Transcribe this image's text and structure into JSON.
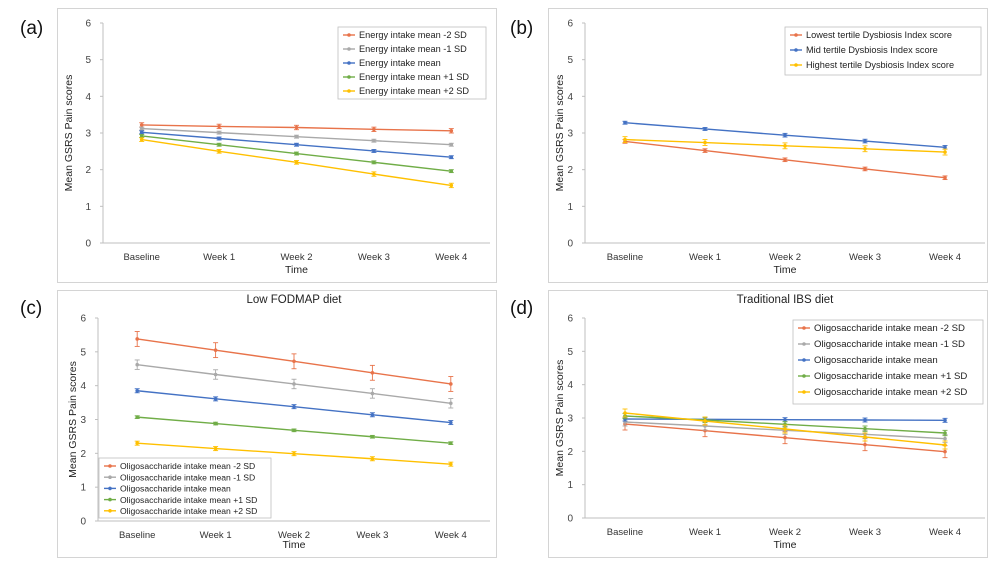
{
  "panels": [
    {
      "letter": "(a)",
      "chart_data": {
        "type": "line",
        "title": "",
        "xlabel": "Time",
        "ylabel": "Mean GSRS Pain scores",
        "categories": [
          "Baseline",
          "Week 1",
          "Week 2",
          "Week 3",
          "Week 4"
        ],
        "ylim": [
          0,
          6
        ],
        "yticks": [
          "0",
          "1",
          "2",
          "3",
          "4",
          "5",
          "6"
        ],
        "grid": false,
        "legend_placement": "top-right",
        "series": [
          {
            "name": "Energy intake mean -2 SD",
            "color": "#e8734a",
            "values": [
              3.22,
              3.18,
              3.15,
              3.1,
              3.06
            ],
            "errors": [
              0.06,
              0.06,
              0.06,
              0.06,
              0.06
            ]
          },
          {
            "name": "Energy intake mean -1 SD",
            "color": "#a9a9a9",
            "values": [
              3.12,
              3.01,
              2.9,
              2.79,
              2.68
            ],
            "errors": [
              0.04,
              0.04,
              0.04,
              0.04,
              0.04
            ]
          },
          {
            "name": "Energy intake mean",
            "color": "#4472c4",
            "values": [
              3.02,
              2.85,
              2.68,
              2.51,
              2.34
            ],
            "errors": [
              0.04,
              0.04,
              0.04,
              0.04,
              0.04
            ]
          },
          {
            "name": "Energy intake mean +1 SD",
            "color": "#70ad47",
            "values": [
              2.92,
              2.68,
              2.44,
              2.2,
              1.96
            ],
            "errors": [
              0.04,
              0.04,
              0.04,
              0.04,
              0.04
            ]
          },
          {
            "name": "Energy intake mean +2 SD",
            "color": "#ffc000",
            "values": [
              2.82,
              2.5,
              2.2,
              1.88,
              1.57
            ],
            "errors": [
              0.05,
              0.05,
              0.05,
              0.06,
              0.06
            ]
          }
        ]
      }
    },
    {
      "letter": "(b)",
      "chart_data": {
        "type": "line",
        "title": "",
        "xlabel": "Time",
        "ylabel": "Mean GSRS Pain scores",
        "categories": [
          "Baseline",
          "Week 1",
          "Week 2",
          "Week 3",
          "Week 4"
        ],
        "ylim": [
          0,
          6
        ],
        "yticks": [
          "0",
          "1",
          "2",
          "3",
          "4",
          "5",
          "6"
        ],
        "grid": false,
        "legend_placement": "top-right",
        "series": [
          {
            "name": "Lowest tertile Dysbiosis Index score",
            "color": "#e8734a",
            "values": [
              2.77,
              2.52,
              2.27,
              2.02,
              1.78
            ],
            "errors": [
              0.05,
              0.05,
              0.05,
              0.05,
              0.05
            ]
          },
          {
            "name": "Mid tertile Dysbiosis Index score",
            "color": "#4472c4",
            "values": [
              3.28,
              3.11,
              2.94,
              2.78,
              2.61
            ],
            "errors": [
              0.04,
              0.04,
              0.05,
              0.05,
              0.05
            ]
          },
          {
            "name": "Highest tertile Dysbiosis Index score",
            "color": "#ffc000",
            "values": [
              2.82,
              2.74,
              2.65,
              2.57,
              2.48
            ],
            "errors": [
              0.08,
              0.08,
              0.08,
              0.08,
              0.08
            ]
          }
        ]
      }
    },
    {
      "letter": "(c)",
      "chart_data": {
        "type": "line",
        "title": "Low FODMAP diet",
        "xlabel": "Time",
        "ylabel": "Mean GSRS Pain scores",
        "categories": [
          "Baseline",
          "Week 1",
          "Week 2",
          "Week 3",
          "Week 4"
        ],
        "ylim": [
          0,
          6
        ],
        "yticks": [
          "0",
          "1",
          "2",
          "3",
          "4",
          "5",
          "6"
        ],
        "grid": false,
        "legend_placement": "bottom-left",
        "series": [
          {
            "name": "Oligosaccharide intake mean -2 SD",
            "color": "#e8734a",
            "values": [
              5.38,
              5.05,
              4.72,
              4.38,
              4.05
            ],
            "errors": [
              0.22,
              0.22,
              0.22,
              0.22,
              0.22
            ]
          },
          {
            "name": "Oligosaccharide intake mean -1 SD",
            "color": "#a9a9a9",
            "values": [
              4.62,
              4.33,
              4.05,
              3.77,
              3.48
            ],
            "errors": [
              0.14,
              0.14,
              0.14,
              0.14,
              0.14
            ]
          },
          {
            "name": "Oligosaccharide intake mean",
            "color": "#4472c4",
            "values": [
              3.85,
              3.61,
              3.38,
              3.14,
              2.91
            ],
            "errors": [
              0.06,
              0.06,
              0.06,
              0.06,
              0.06
            ]
          },
          {
            "name": "Oligosaccharide intake mean +1 SD",
            "color": "#70ad47",
            "values": [
              3.07,
              2.88,
              2.68,
              2.49,
              2.3
            ],
            "errors": [
              0.04,
              0.04,
              0.04,
              0.04,
              0.04
            ]
          },
          {
            "name": "Oligosaccharide intake mean +2 SD",
            "color": "#ffc000",
            "values": [
              2.3,
              2.14,
              1.99,
              1.84,
              1.68
            ],
            "errors": [
              0.06,
              0.06,
              0.06,
              0.06,
              0.06
            ]
          }
        ]
      }
    },
    {
      "letter": "(d)",
      "chart_data": {
        "type": "line",
        "title": "Traditional IBS diet",
        "xlabel": "Time",
        "ylabel": "Mean GSRS Pain scores",
        "categories": [
          "Baseline",
          "Week 1",
          "Week 2",
          "Week 3",
          "Week 4"
        ],
        "ylim": [
          0,
          6
        ],
        "yticks": [
          "0",
          "1",
          "2",
          "3",
          "4",
          "5",
          "6"
        ],
        "grid": false,
        "legend_placement": "top-right",
        "series": [
          {
            "name": "Oligosaccharide intake mean -2 SD",
            "color": "#e8734a",
            "values": [
              2.82,
              2.62,
              2.41,
              2.2,
              1.99
            ],
            "errors": [
              0.18,
              0.18,
              0.18,
              0.18,
              0.18
            ]
          },
          {
            "name": "Oligosaccharide intake mean -1 SD",
            "color": "#a9a9a9",
            "values": [
              2.88,
              2.76,
              2.63,
              2.51,
              2.38
            ],
            "errors": [
              0.12,
              0.12,
              0.12,
              0.12,
              0.12
            ]
          },
          {
            "name": "Oligosaccharide intake mean",
            "color": "#4472c4",
            "values": [
              2.97,
              2.96,
              2.95,
              2.94,
              2.93
            ],
            "errors": [
              0.06,
              0.06,
              0.06,
              0.06,
              0.06
            ]
          },
          {
            "name": "Oligosaccharide intake mean +1 SD",
            "color": "#70ad47",
            "values": [
              3.06,
              2.94,
              2.81,
              2.68,
              2.55
            ],
            "errors": [
              0.08,
              0.08,
              0.08,
              0.08,
              0.08
            ]
          },
          {
            "name": "Oligosaccharide intake mean +2 SD",
            "color": "#ffc000",
            "values": [
              3.15,
              2.91,
              2.67,
              2.43,
              2.19
            ],
            "errors": [
              0.12,
              0.12,
              0.12,
              0.12,
              0.12
            ]
          }
        ]
      }
    }
  ]
}
